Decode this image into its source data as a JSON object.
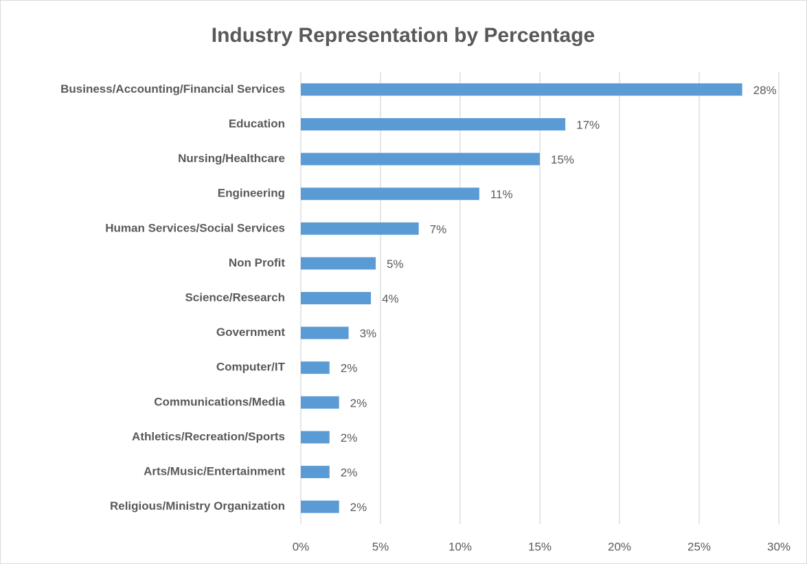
{
  "chart_data": {
    "type": "bar",
    "orientation": "horizontal",
    "title": "Industry Representation by Percentage",
    "categories": [
      "Business/Accounting/Financial Services",
      "Education",
      "Nursing/Healthcare",
      "Engineering",
      "Human Services/Social Services",
      "Non Profit",
      "Science/Research",
      "Government",
      "Computer/IT",
      "Communications/Media",
      "Athletics/Recreation/Sports",
      "Arts/Music/Entertainment",
      "Religious/Ministry Organization"
    ],
    "values": [
      27.7,
      16.6,
      15.0,
      11.2,
      7.4,
      4.7,
      4.4,
      3.0,
      1.8,
      2.4,
      1.8,
      1.8,
      2.4
    ],
    "value_labels": [
      "28%",
      "17%",
      "15%",
      "11%",
      "7%",
      "5%",
      "4%",
      "3%",
      "2%",
      "2%",
      "2%",
      "2%",
      "2%"
    ],
    "color": "#5b9bd5",
    "xlim": [
      0,
      30
    ],
    "xticks": [
      {
        "value": 0,
        "label": "0%"
      },
      {
        "value": 5,
        "label": "5%"
      },
      {
        "value": 10,
        "label": "10%"
      },
      {
        "value": 15,
        "label": "15%"
      },
      {
        "value": 20,
        "label": "20%"
      },
      {
        "value": 25,
        "label": "25%"
      },
      {
        "value": 30,
        "label": "30%"
      }
    ],
    "grid": true
  }
}
